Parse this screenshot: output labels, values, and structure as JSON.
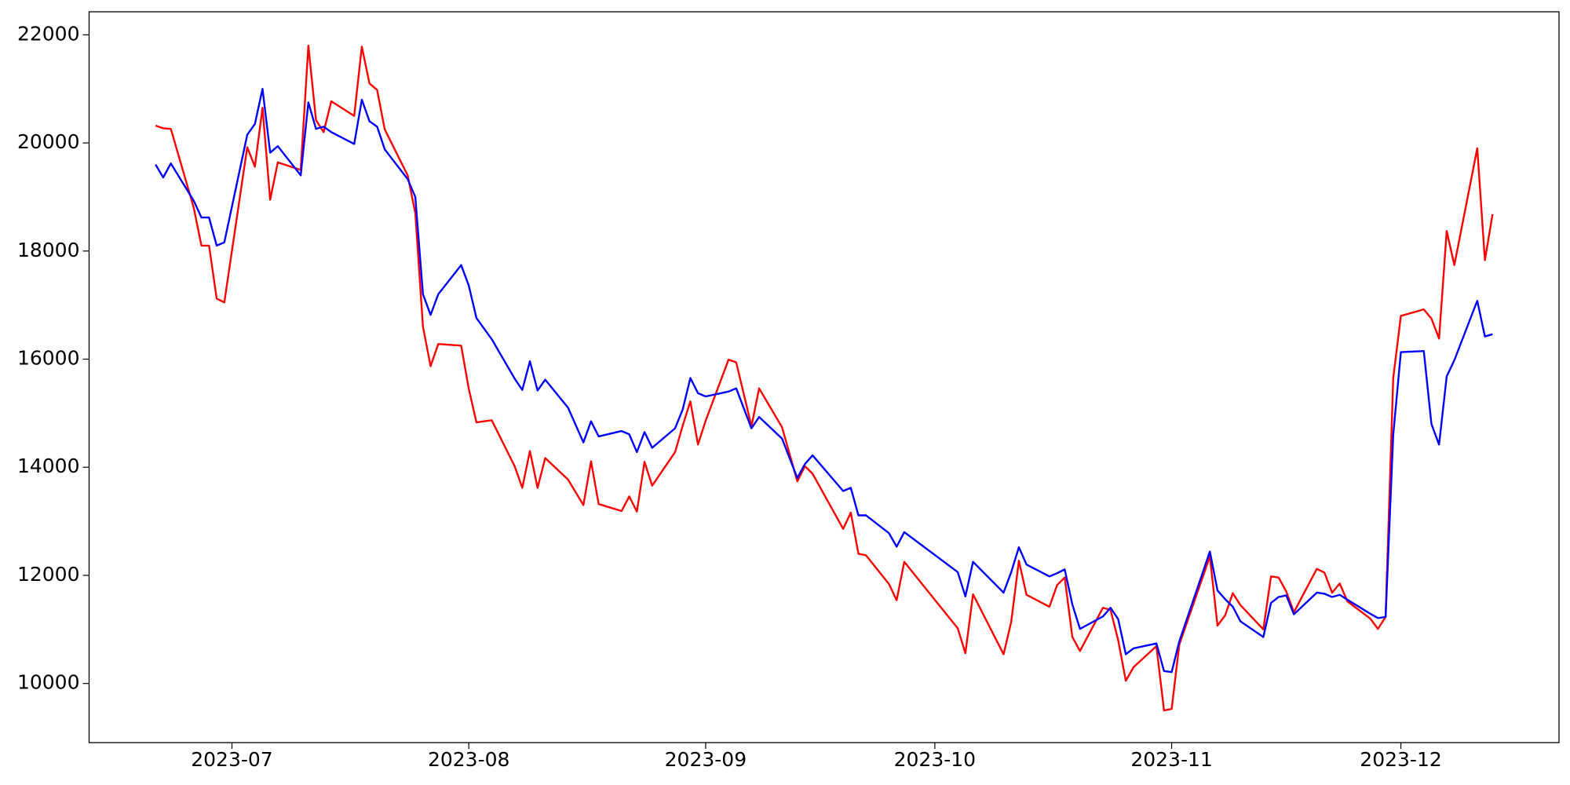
{
  "chart_data": {
    "type": "line",
    "x": [
      172,
      173,
      174,
      177,
      178,
      179,
      180,
      181,
      184,
      185,
      186,
      187,
      188,
      191,
      192,
      193,
      194,
      195,
      198,
      199,
      200,
      201,
      202,
      205,
      206,
      207,
      208,
      209,
      212,
      213,
      214,
      216,
      219,
      220,
      221,
      222,
      223,
      226,
      228,
      229,
      230,
      233,
      234,
      235,
      236,
      237,
      240,
      241,
      242,
      243,
      244,
      247,
      248,
      250,
      251,
      254,
      256,
      257,
      258,
      262,
      263,
      264,
      265,
      268,
      269,
      270,
      277,
      278,
      279,
      283,
      284,
      285,
      286,
      289,
      290,
      291,
      292,
      293,
      296,
      297,
      298,
      299,
      300,
      303,
      304,
      305,
      306,
      310,
      311,
      312,
      313,
      314,
      317,
      318,
      319,
      320,
      321,
      324,
      325,
      326,
      327,
      328,
      331,
      332,
      333,
      334,
      335,
      338,
      339,
      340,
      341,
      342,
      345,
      346,
      347
    ],
    "series": [
      {
        "color": "#ff0000",
        "values": [
          20320,
          20270,
          20260,
          18800,
          18100,
          18100,
          17120,
          17050,
          19920,
          19560,
          20650,
          18950,
          19640,
          19500,
          21800,
          20420,
          20200,
          20770,
          20500,
          21780,
          21100,
          20980,
          20250,
          19400,
          18700,
          16600,
          15870,
          16280,
          16250,
          15450,
          14830,
          14870,
          14020,
          13620,
          14300,
          13620,
          14170,
          13770,
          13300,
          14110,
          13320,
          13190,
          13460,
          13180,
          14100,
          13660,
          14280,
          14770,
          15220,
          14420,
          14860,
          15990,
          15940,
          14760,
          15460,
          14740,
          13740,
          14020,
          13880,
          12860,
          13160,
          12400,
          12370,
          11840,
          11540,
          12250,
          11020,
          10560,
          11650,
          10540,
          11140,
          12270,
          11640,
          11420,
          11820,
          11960,
          10860,
          10600,
          11400,
          11360,
          10800,
          10050,
          10300,
          10690,
          9500,
          9530,
          10720,
          12350,
          11070,
          11260,
          11670,
          11450,
          11000,
          11980,
          11960,
          11700,
          11320,
          12120,
          12050,
          11680,
          11850,
          11520,
          11200,
          11010,
          11230,
          15650,
          16800,
          16920,
          16750,
          16380,
          18370,
          17740,
          19900,
          17830,
          18680
        ]
      },
      {
        "color": "#0000ff",
        "values": [
          19600,
          19360,
          19620,
          18930,
          18620,
          18620,
          18100,
          18160,
          20150,
          20350,
          21000,
          19820,
          19940,
          19400,
          20750,
          20260,
          20300,
          20200,
          19980,
          20800,
          20400,
          20300,
          19880,
          19330,
          19000,
          17200,
          16820,
          17200,
          17740,
          17360,
          16760,
          16370,
          15640,
          15430,
          15960,
          15420,
          15620,
          15100,
          14460,
          14850,
          14570,
          14670,
          14610,
          14280,
          14650,
          14360,
          14720,
          15070,
          15650,
          15370,
          15310,
          15400,
          15460,
          14720,
          14930,
          14530,
          13800,
          14060,
          14220,
          13560,
          13620,
          13110,
          13110,
          12780,
          12530,
          12800,
          12060,
          11610,
          12250,
          11680,
          12060,
          12520,
          12200,
          11980,
          12040,
          12110,
          11460,
          11010,
          11240,
          11400,
          11190,
          10540,
          10650,
          10740,
          10230,
          10210,
          10780,
          12440,
          11720,
          11560,
          11420,
          11150,
          10860,
          11490,
          11600,
          11630,
          11280,
          11680,
          11660,
          11600,
          11640,
          11550,
          11290,
          11210,
          11230,
          14600,
          16130,
          16150,
          14800,
          14420,
          15680,
          15980,
          17080,
          16420,
          16460
        ]
      }
    ],
    "xlim": [
      163.3,
      355.7
    ],
    "xticks": [
      {
        "value": 182,
        "label": "2023-07"
      },
      {
        "value": 213,
        "label": "2023-08"
      },
      {
        "value": 244,
        "label": "2023-09"
      },
      {
        "value": 274,
        "label": "2023-10"
      },
      {
        "value": 305,
        "label": "2023-11"
      },
      {
        "value": 335,
        "label": "2023-12"
      }
    ],
    "ylim": [
      8906,
      22426
    ],
    "yticks": [
      10000,
      12000,
      14000,
      16000,
      18000,
      20000,
      22000
    ]
  }
}
